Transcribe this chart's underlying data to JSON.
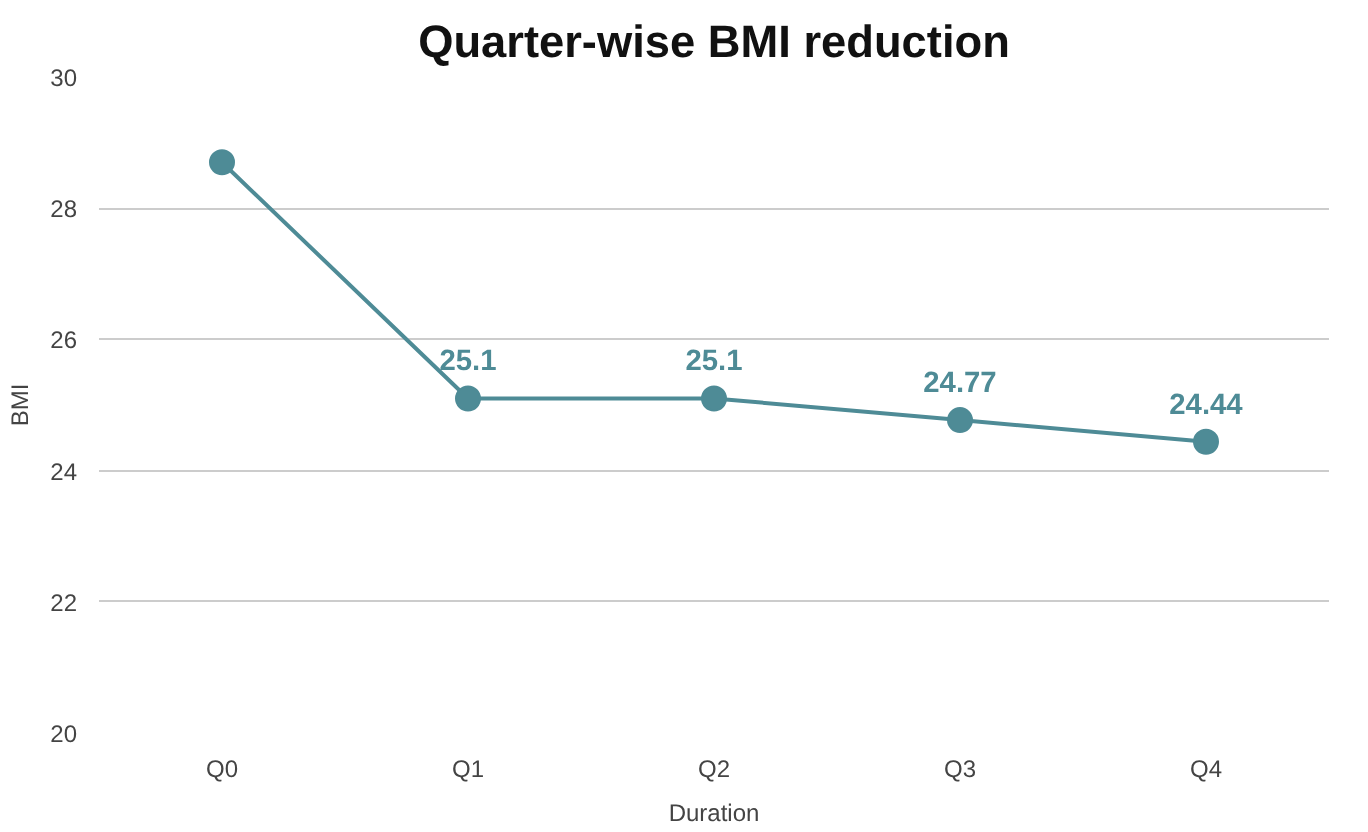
{
  "chart_data": {
    "type": "line",
    "title": "Quarter-wise BMI reduction",
    "xlabel": "Duration",
    "ylabel": "BMI",
    "categories": [
      "Q0",
      "Q1",
      "Q2",
      "Q3",
      "Q4"
    ],
    "series": [
      {
        "color": "#4e8b96",
        "values": [
          28.7,
          25.1,
          25.1,
          24.77,
          24.44
        ],
        "value_labels": [
          null,
          "25.1",
          "25.1",
          "24.77",
          "24.44"
        ]
      }
    ],
    "ylim": [
      20,
      30
    ],
    "yticks": [
      20,
      22,
      24,
      26,
      28,
      30
    ],
    "grid": "y",
    "marker": "circle",
    "line_style": "solid"
  }
}
